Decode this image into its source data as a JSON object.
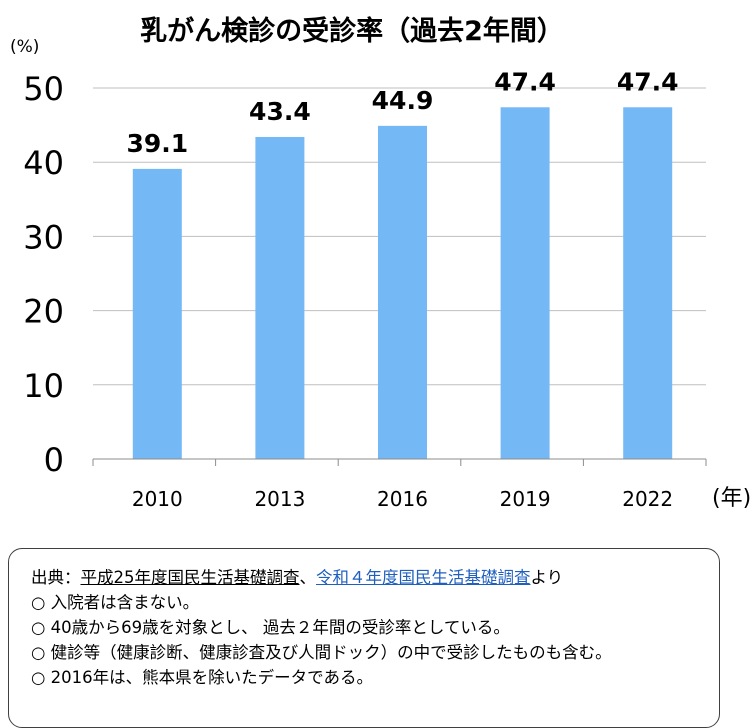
{
  "chart_data": {
    "type": "bar",
    "title": "乳がん検診の受診率（過去2年間）",
    "ylabel": "(%)",
    "xlabel": "(年)",
    "categories": [
      "2010",
      "2013",
      "2016",
      "2019",
      "2022"
    ],
    "values": [
      39.1,
      43.4,
      44.9,
      47.4,
      47.4
    ],
    "value_labels": [
      "39.1",
      "43.4",
      "44.9",
      "47.4",
      "47.4"
    ],
    "yticks": [
      "0",
      "10",
      "20",
      "30",
      "40",
      "50"
    ],
    "ylim": [
      0,
      50
    ],
    "grid": true,
    "bar_color": "#75b8f6"
  },
  "notes": {
    "source_prefix": "出典：",
    "source_link1": "平成25年度国民生活基礎調査",
    "source_sep": "、",
    "source_link2": "令和４年度国民生活基礎調査",
    "source_suffix": "より",
    "items": [
      "○ 入院者は含まない。",
      "○ 40歳から69歳を対象とし、 過去２年間の受診率としている。",
      "○ 健診等（健康診断、健康診査及び人間ドック）の中で受診したものも含む。",
      "○ 2016年は、熊本県を除いたデータである。"
    ]
  }
}
